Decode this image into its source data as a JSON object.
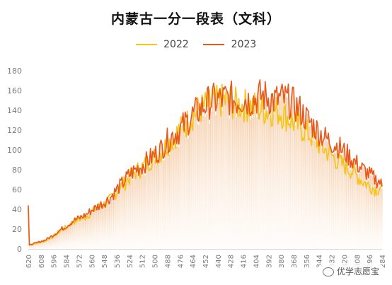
{
  "chart_data": {
    "type": "line",
    "title": "内蒙古一分一段表（文科）",
    "xlabel": "",
    "ylabel": "",
    "ylim": [
      0,
      180
    ],
    "yticks": [
      0,
      20,
      40,
      60,
      80,
      100,
      120,
      140,
      160,
      180
    ],
    "x_tick_labels": [
      "620",
      "608",
      "596",
      "584",
      "572",
      "560",
      "548",
      "536",
      "524",
      "512",
      "500",
      "488",
      "476",
      "464",
      "452",
      "440",
      "428",
      "416",
      "404",
      "392",
      "380",
      "368",
      "356",
      "344",
      "332",
      "320",
      "308",
      "296",
      "284"
    ],
    "legend_position": "top-center",
    "grid": false,
    "series": [
      {
        "name": "2022",
        "color": "#F5C518",
        "anchors": [
          [
            620,
            42
          ],
          [
            619,
            4
          ],
          [
            616,
            5
          ],
          [
            610,
            6
          ],
          [
            604,
            8
          ],
          [
            596,
            13
          ],
          [
            590,
            18
          ],
          [
            584,
            22
          ],
          [
            578,
            27
          ],
          [
            572,
            30
          ],
          [
            566,
            32
          ],
          [
            560,
            37
          ],
          [
            554,
            42
          ],
          [
            548,
            45
          ],
          [
            542,
            50
          ],
          [
            536,
            58
          ],
          [
            530,
            65
          ],
          [
            524,
            72
          ],
          [
            518,
            78
          ],
          [
            512,
            82
          ],
          [
            506,
            88
          ],
          [
            500,
            93
          ],
          [
            494,
            98
          ],
          [
            488,
            106
          ],
          [
            482,
            112
          ],
          [
            478,
            118
          ],
          [
            476,
            120
          ],
          [
            470,
            126
          ],
          [
            464,
            135
          ],
          [
            458,
            140
          ],
          [
            452,
            144
          ],
          [
            446,
            148
          ],
          [
            440,
            148
          ],
          [
            434,
            150
          ],
          [
            428,
            148
          ],
          [
            422,
            146
          ],
          [
            416,
            145
          ],
          [
            410,
            145
          ],
          [
            404,
            143
          ],
          [
            398,
            141
          ],
          [
            392,
            139
          ],
          [
            386,
            140
          ],
          [
            380,
            138
          ],
          [
            374,
            133
          ],
          [
            368,
            128
          ],
          [
            362,
            123
          ],
          [
            356,
            118
          ],
          [
            350,
            113
          ],
          [
            344,
            106
          ],
          [
            338,
            100
          ],
          [
            332,
            95
          ],
          [
            326,
            88
          ],
          [
            320,
            84
          ],
          [
            314,
            80
          ],
          [
            308,
            74
          ],
          [
            302,
            68
          ],
          [
            296,
            64
          ],
          [
            290,
            60
          ],
          [
            286,
            62
          ],
          [
            284,
            60
          ]
        ]
      },
      {
        "name": "2023",
        "color": "#E8581C",
        "anchors": [
          [
            620,
            44
          ],
          [
            619,
            4
          ],
          [
            616,
            5
          ],
          [
            610,
            7
          ],
          [
            604,
            9
          ],
          [
            596,
            14
          ],
          [
            590,
            19
          ],
          [
            584,
            23
          ],
          [
            578,
            28
          ],
          [
            572,
            31
          ],
          [
            566,
            34
          ],
          [
            560,
            39
          ],
          [
            554,
            43
          ],
          [
            548,
            47
          ],
          [
            542,
            52
          ],
          [
            536,
            60
          ],
          [
            530,
            67
          ],
          [
            524,
            75
          ],
          [
            518,
            80
          ],
          [
            512,
            84
          ],
          [
            506,
            90
          ],
          [
            500,
            95
          ],
          [
            494,
            101
          ],
          [
            488,
            109
          ],
          [
            482,
            116
          ],
          [
            476,
            120
          ],
          [
            470,
            128
          ],
          [
            464,
            135
          ],
          [
            458,
            140
          ],
          [
            452,
            146
          ],
          [
            446,
            150
          ],
          [
            440,
            150
          ],
          [
            434,
            152
          ],
          [
            428,
            152
          ],
          [
            422,
            150
          ],
          [
            416,
            152
          ],
          [
            410,
            150
          ],
          [
            404,
            152
          ],
          [
            398,
            155
          ],
          [
            392,
            153
          ],
          [
            386,
            150
          ],
          [
            380,
            152
          ],
          [
            374,
            150
          ],
          [
            368,
            146
          ],
          [
            362,
            140
          ],
          [
            356,
            132
          ],
          [
            350,
            125
          ],
          [
            344,
            118
          ],
          [
            338,
            112
          ],
          [
            332,
            108
          ],
          [
            326,
            104
          ],
          [
            320,
            98
          ],
          [
            314,
            92
          ],
          [
            308,
            86
          ],
          [
            302,
            80
          ],
          [
            296,
            75
          ],
          [
            290,
            70
          ],
          [
            286,
            68
          ],
          [
            284,
            62
          ]
        ]
      }
    ]
  },
  "watermark": {
    "text": "优学志愿宝",
    "icon": "wechat-icon"
  }
}
